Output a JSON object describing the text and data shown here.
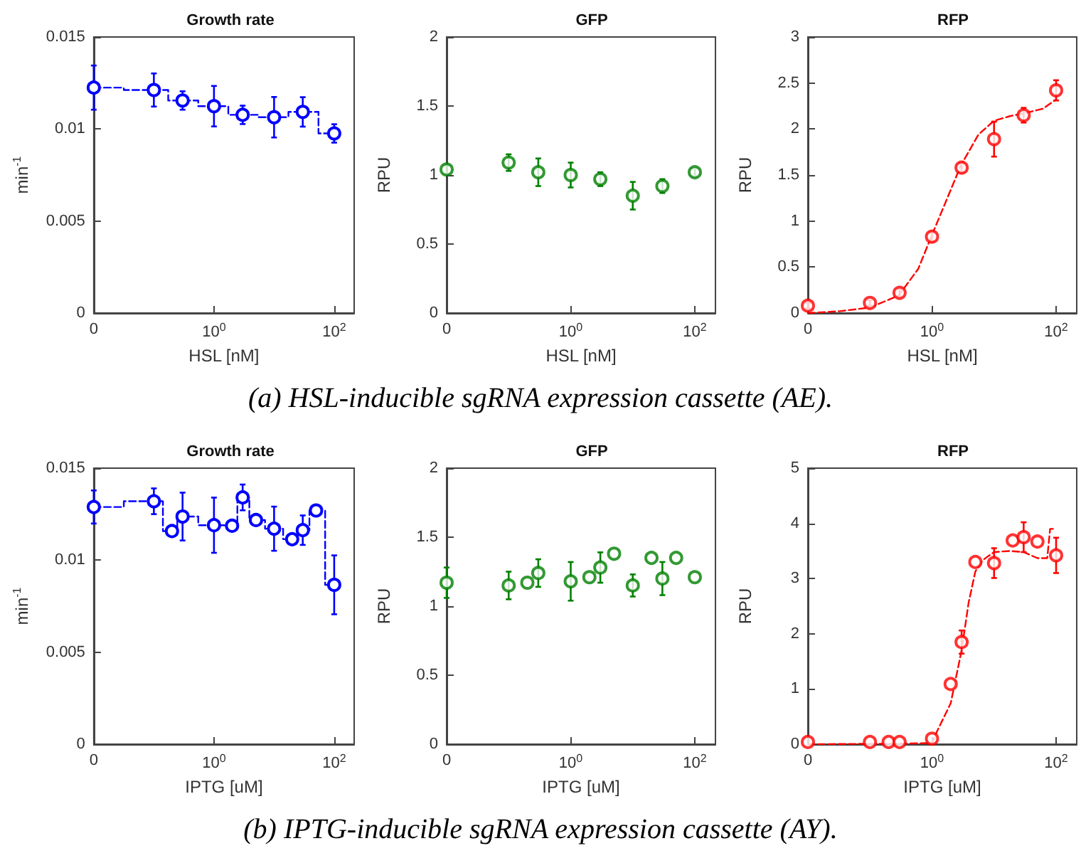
{
  "chart_data": [
    {
      "type": "step",
      "title": "Growth rate",
      "xlabel": "HSL [nM]",
      "ylabel": "min$^{-1}$",
      "log": "x",
      "x": [
        0.01,
        0.1,
        0.3,
        1,
        3,
        10,
        30,
        100
      ],
      "xlim": [
        0.01,
        215
      ],
      "xticks": [
        {
          "value": 0.01,
          "label": "0"
        },
        {
          "value": 1,
          "label": "10$^{0}$"
        },
        {
          "value": 100,
          "label": "10$^{2}$"
        }
      ],
      "ylim": [
        0,
        0.015
      ],
      "yticks": [
        0,
        0.005,
        0.01,
        0.015
      ],
      "series": [
        {
          "color": "#0000ff",
          "marker": "circle",
          "line_style": "dashed",
          "values": [
            0.01225,
            0.01212,
            0.01155,
            0.01124,
            0.01077,
            0.01064,
            0.01093,
            0.00976
          ],
          "errors": [
            0.0012,
            0.0009,
            0.0005,
            0.0011,
            0.0005,
            0.0011,
            0.0008,
            0.0005
          ]
        }
      ],
      "annotations": [
        "(a) HSL-inducible sgRNA expression cassette (AE)."
      ]
    },
    {
      "type": "scatter",
      "title": "GFP",
      "xlabel": "HSL [nM]",
      "ylabel": "RPU",
      "log": "x",
      "x": [
        0.01,
        0.1,
        0.3,
        1,
        3,
        10,
        30,
        100
      ],
      "xlim": [
        0.01,
        215
      ],
      "xticks": [
        {
          "value": 0.01,
          "label": "0"
        },
        {
          "value": 1,
          "label": "10$^{0}$"
        },
        {
          "value": 100,
          "label": "10$^{2}$"
        }
      ],
      "ylim": [
        0,
        2
      ],
      "yticks": [
        0,
        0.5,
        1,
        1.5,
        2
      ],
      "series": [
        {
          "color": "#008000",
          "marker": "circle",
          "values": [
            1.04,
            1.09,
            1.02,
            1.0,
            0.97,
            0.85,
            0.92,
            1.02
          ],
          "errors": [
            0.03,
            0.06,
            0.1,
            0.09,
            0.05,
            0.1,
            0.05,
            0.03
          ]
        }
      ]
    },
    {
      "type": "scatter",
      "title": "RFP",
      "xlabel": "HSL [nM]",
      "ylabel": "RPU",
      "log": "x",
      "x": [
        0.01,
        0.1,
        0.3,
        1,
        3,
        10,
        30,
        100
      ],
      "xlim": [
        0.01,
        215
      ],
      "xticks": [
        {
          "value": 0.01,
          "label": "0"
        },
        {
          "value": 1,
          "label": "10$^{0}$"
        },
        {
          "value": 100,
          "label": "10$^{2}$"
        }
      ],
      "ylim": [
        0,
        3
      ],
      "yticks": [
        0,
        0.5,
        1,
        1.5,
        2,
        2.5,
        3
      ],
      "series": [
        {
          "color": "#ff0000",
          "marker": "circle",
          "values": [
            0.08,
            0.11,
            0.22,
            0.83,
            1.58,
            1.89,
            2.15,
            2.42
          ],
          "errors": [
            0.03,
            0.03,
            0.04,
            0.05,
            0.05,
            0.19,
            0.08,
            0.11
          ]
        },
        {
          "type": "line",
          "color": "#ff0000",
          "marker": "none",
          "line_style": "dashed",
          "x": [
            0.01,
            0.033,
            0.1,
            0.29,
            0.6,
            1,
            1.67,
            2.9,
            5.6,
            10,
            18,
            30,
            61,
            100
          ],
          "values": [
            0.0,
            0.02,
            0.06,
            0.19,
            0.48,
            0.85,
            1.21,
            1.6,
            1.94,
            2.09,
            2.14,
            2.17,
            2.22,
            2.32
          ]
        }
      ]
    },
    {
      "type": "step",
      "title": "Growth rate",
      "xlabel": "IPTG [uM]",
      "ylabel": "min$^{-1}$",
      "log": "x",
      "x": [
        0.01,
        0.1,
        0.2,
        0.3,
        1,
        2,
        3,
        5,
        10,
        20,
        30,
        50,
        100
      ],
      "xlim": [
        0.01,
        215
      ],
      "xticks": [
        {
          "value": 0.01,
          "label": "0"
        },
        {
          "value": 1,
          "label": "10$^{0}$"
        },
        {
          "value": 100,
          "label": "10$^{2}$"
        }
      ],
      "ylim": [
        0,
        0.015
      ],
      "yticks": [
        0,
        0.005,
        0.01,
        0.015
      ],
      "series": [
        {
          "color": "#0000ff",
          "marker": "circle",
          "line_style": "dashed",
          "values": [
            0.01289,
            0.0132,
            0.01158,
            0.01237,
            0.0119,
            0.01187,
            0.01341,
            0.01218,
            0.01171,
            0.01114,
            0.01163,
            0.0127,
            0.00866
          ],
          "errors": [
            0.0009,
            0.0007,
            null,
            0.0013,
            0.0015,
            null,
            0.0007,
            null,
            0.0012,
            null,
            0.0008,
            null,
            0.0016
          ]
        }
      ],
      "annotations": [
        "(b) IPTG-inducible sgRNA expression cassette (AY)."
      ]
    },
    {
      "type": "scatter",
      "title": "GFP",
      "xlabel": "IPTG [uM]",
      "ylabel": "RPU",
      "log": "x",
      "x": [
        0.01,
        0.1,
        0.2,
        0.3,
        1,
        2,
        3,
        5,
        10,
        20,
        30,
        50,
        100
      ],
      "xlim": [
        0.01,
        215
      ],
      "xticks": [
        {
          "value": 0.01,
          "label": "0"
        },
        {
          "value": 1,
          "label": "10$^{0}$"
        },
        {
          "value": 100,
          "label": "10$^{2}$"
        }
      ],
      "ylim": [
        0,
        2
      ],
      "yticks": [
        0,
        0.5,
        1,
        1.5,
        2
      ],
      "series": [
        {
          "color": "#008000",
          "marker": "circle",
          "values": [
            1.17,
            1.15,
            1.17,
            1.24,
            1.18,
            1.21,
            1.28,
            1.38,
            1.15,
            1.35,
            1.2,
            1.35,
            1.21
          ],
          "errors": [
            0.11,
            0.1,
            null,
            0.1,
            0.14,
            null,
            0.11,
            null,
            0.08,
            null,
            0.12,
            null,
            null
          ]
        }
      ]
    },
    {
      "type": "scatter",
      "title": "RFP",
      "xlabel": "IPTG [uM]",
      "ylabel": "RPU",
      "log": "x",
      "x": [
        0.01,
        0.1,
        0.2,
        0.3,
        1,
        2,
        3,
        5,
        10,
        20,
        30,
        50,
        100
      ],
      "xlim": [
        0.01,
        215
      ],
      "xticks": [
        {
          "value": 0.01,
          "label": "0"
        },
        {
          "value": 1,
          "label": "10$^{0}$"
        },
        {
          "value": 100,
          "label": "10$^{2}$"
        }
      ],
      "ylim": [
        0,
        5
      ],
      "yticks": [
        0,
        1,
        2,
        3,
        4,
        5
      ],
      "series": [
        {
          "color": "#ff0000",
          "marker": "circle",
          "values": [
            0.04,
            0.04,
            0.04,
            0.04,
            0.1,
            1.09,
            1.85,
            3.3,
            3.28,
            3.69,
            3.75,
            3.67,
            3.42
          ],
          "errors": [
            null,
            null,
            null,
            null,
            null,
            null,
            0.21,
            null,
            0.27,
            null,
            0.27,
            null,
            0.32
          ]
        },
        {
          "type": "line",
          "color": "#ff0000",
          "marker": "none",
          "line_style": "dashed",
          "x": [
            0.01,
            0.3,
            1,
            1.19,
            2,
            3,
            3.9,
            5,
            6.5,
            10,
            18,
            30,
            50,
            72,
            80,
            95
          ],
          "values": [
            0.0,
            0.01,
            0.02,
            0.22,
            0.74,
            1.7,
            2.57,
            3.13,
            3.33,
            3.48,
            3.5,
            3.48,
            3.37,
            3.37,
            3.9,
            3.9
          ]
        }
      ]
    }
  ]
}
